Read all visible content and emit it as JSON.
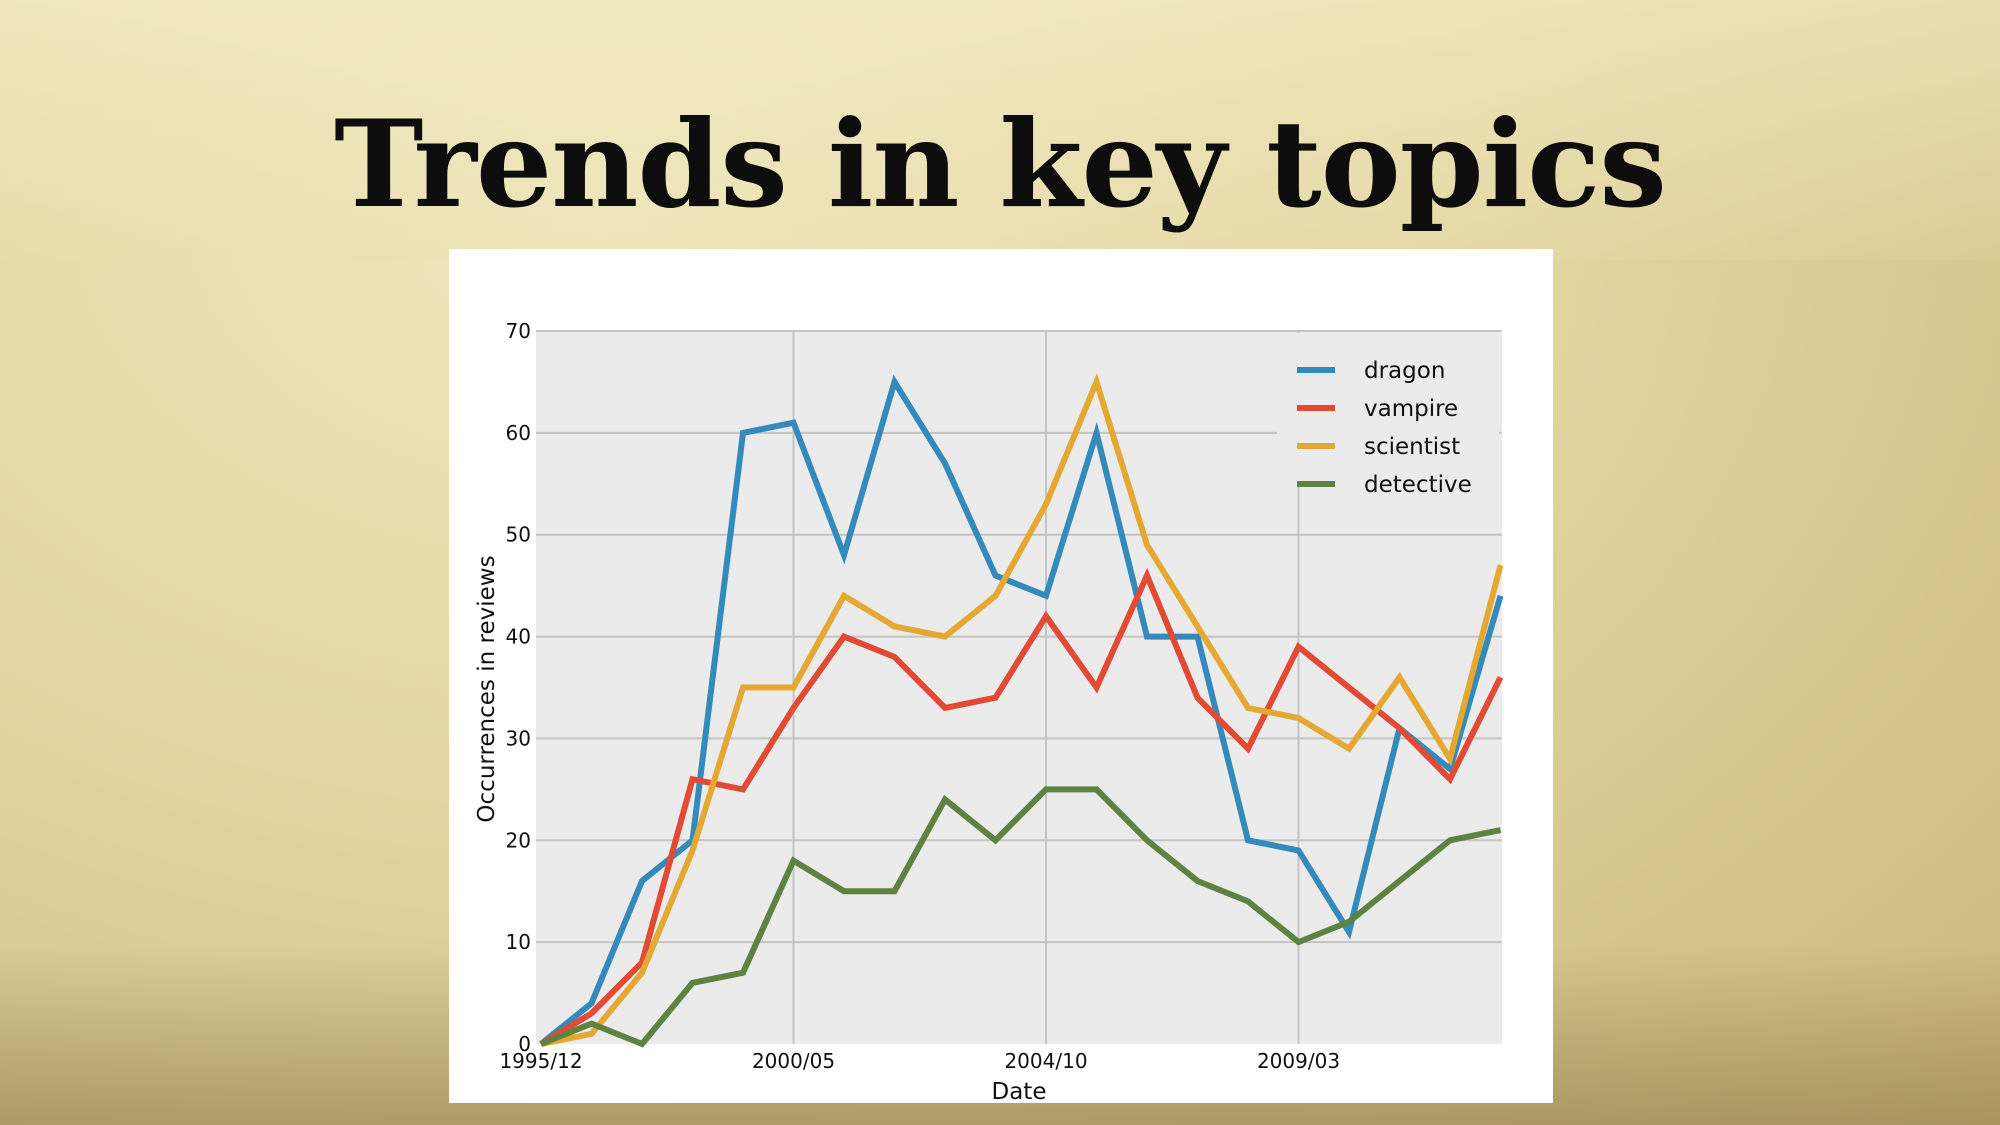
{
  "slide": {
    "title": "Trends in key topics"
  },
  "chart_data": {
    "type": "line",
    "title": "",
    "xlabel": "Date",
    "ylabel": "Occurrences in reviews",
    "ylim": [
      0,
      70
    ],
    "yticks": [
      0,
      10,
      20,
      30,
      40,
      50,
      60,
      70
    ],
    "xtick_labels": [
      "1995/12",
      "2000/05",
      "2004/10",
      "2009/03"
    ],
    "xtick_positions": [
      0,
      5,
      10,
      15
    ],
    "x": [
      0,
      1,
      2,
      3,
      4,
      5,
      6,
      7,
      8,
      9,
      10,
      11,
      12,
      13,
      14,
      15,
      16,
      17,
      18,
      19
    ],
    "grid": true,
    "legend_position": "top-right",
    "series": [
      {
        "name": "dragon",
        "color": "#348ABD",
        "values": [
          0,
          4,
          16,
          20,
          60,
          61,
          48,
          65,
          57,
          46,
          44,
          60,
          40,
          40,
          20,
          19,
          11,
          31,
          27,
          44
        ]
      },
      {
        "name": "vampire",
        "color": "#E24A33",
        "values": [
          0,
          3,
          8,
          26,
          25,
          33,
          40,
          38,
          33,
          34,
          42,
          35,
          46,
          34,
          29,
          39,
          35,
          31,
          26,
          36
        ]
      },
      {
        "name": "scientist",
        "color": "#E5A832",
        "values": [
          0,
          1,
          7,
          19,
          35,
          35,
          44,
          41,
          40,
          44,
          53,
          65,
          49,
          41,
          33,
          32,
          29,
          36,
          28,
          47
        ]
      },
      {
        "name": "detective",
        "color": "#5E8240",
        "values": [
          0,
          2,
          0,
          6,
          7,
          18,
          15,
          15,
          24,
          20,
          25,
          25,
          20,
          16,
          14,
          10,
          12,
          16,
          20,
          21
        ]
      }
    ]
  }
}
